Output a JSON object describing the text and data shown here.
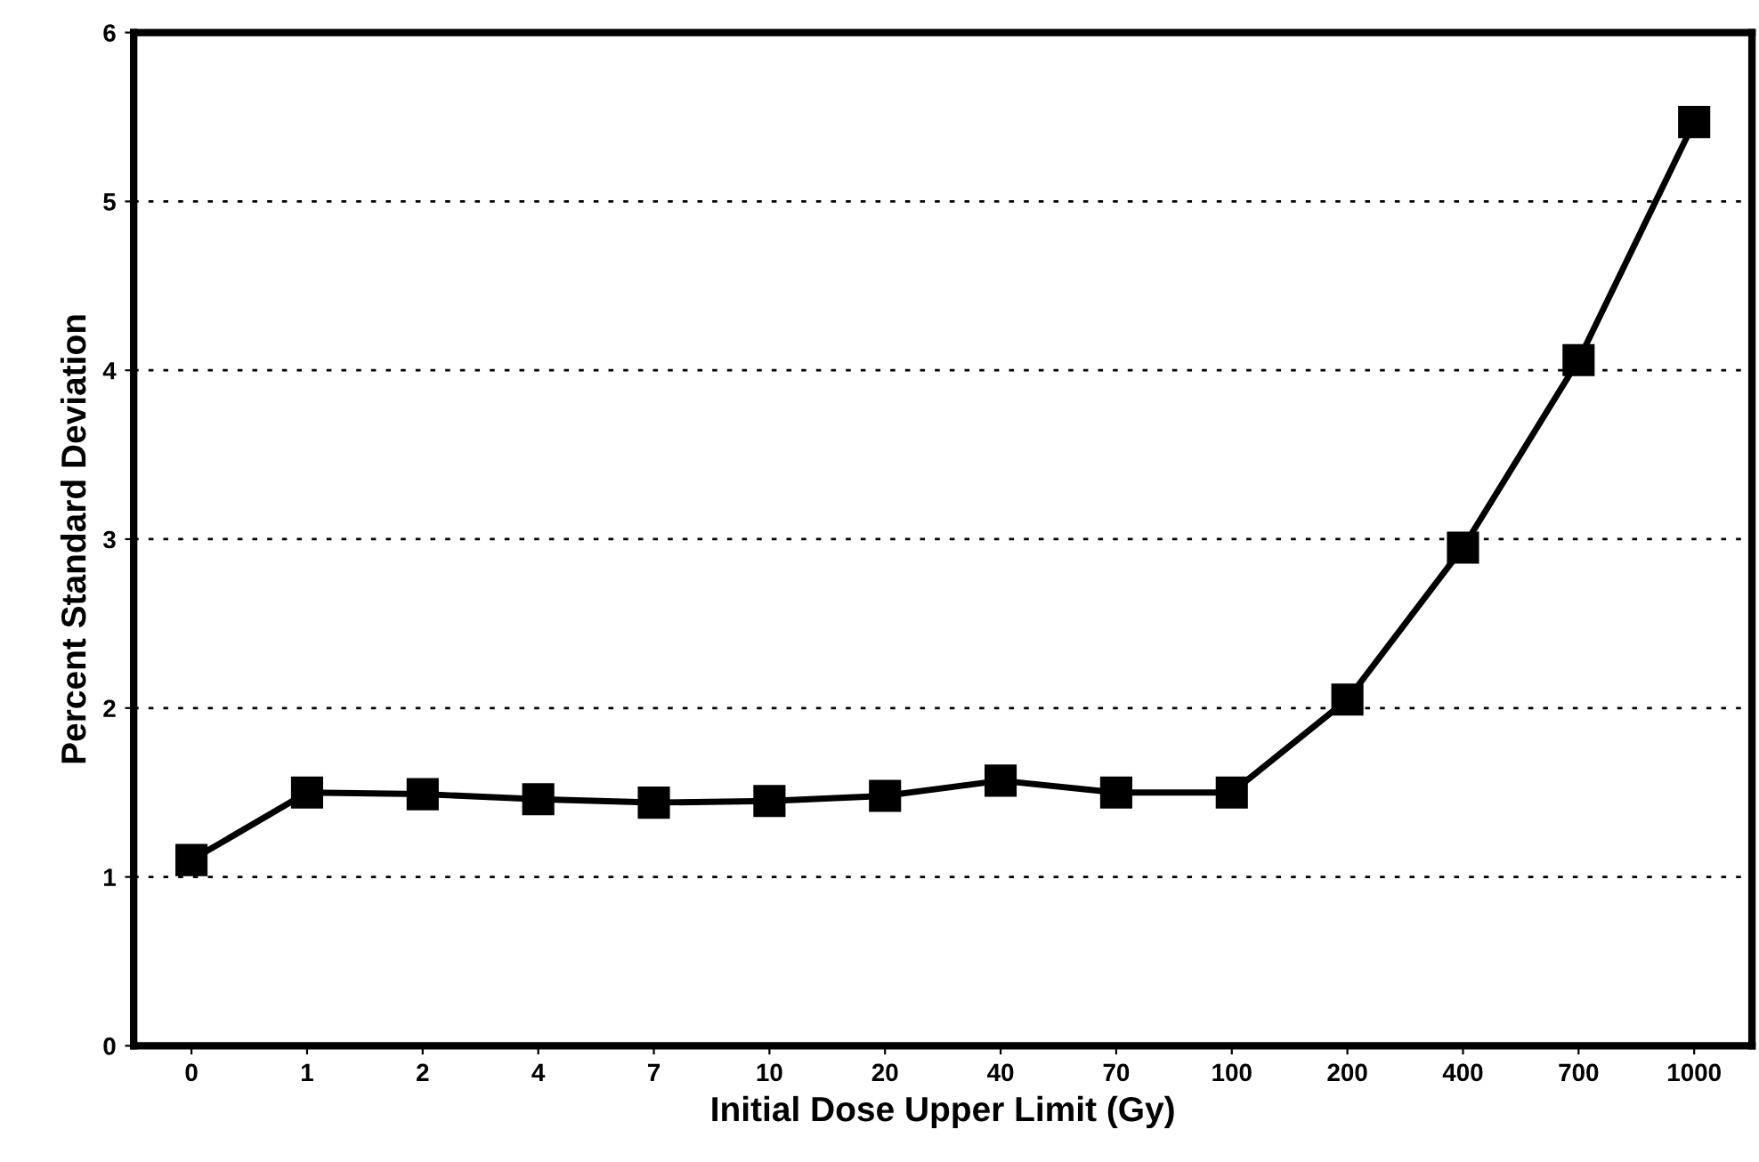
{
  "chart_data": {
    "type": "line",
    "xlabel": "Initial Dose Upper Limit (Gy)",
    "ylabel": "Percent Standard Deviation",
    "categories": [
      "0",
      "1",
      "2",
      "4",
      "7",
      "10",
      "20",
      "40",
      "70",
      "100",
      "200",
      "400",
      "700",
      "1000"
    ],
    "series": [
      {
        "color": "#000000",
        "values": [
          1.1,
          1.5,
          1.49,
          1.46,
          1.44,
          1.45,
          1.48,
          1.57,
          1.5,
          1.5,
          2.05,
          2.95,
          4.06,
          5.47
        ]
      }
    ],
    "ylim": [
      0,
      6
    ],
    "yticks": [
      0,
      1,
      2,
      3,
      4,
      5,
      6
    ],
    "grid": "y",
    "marker": "square",
    "line_style": "solid"
  }
}
